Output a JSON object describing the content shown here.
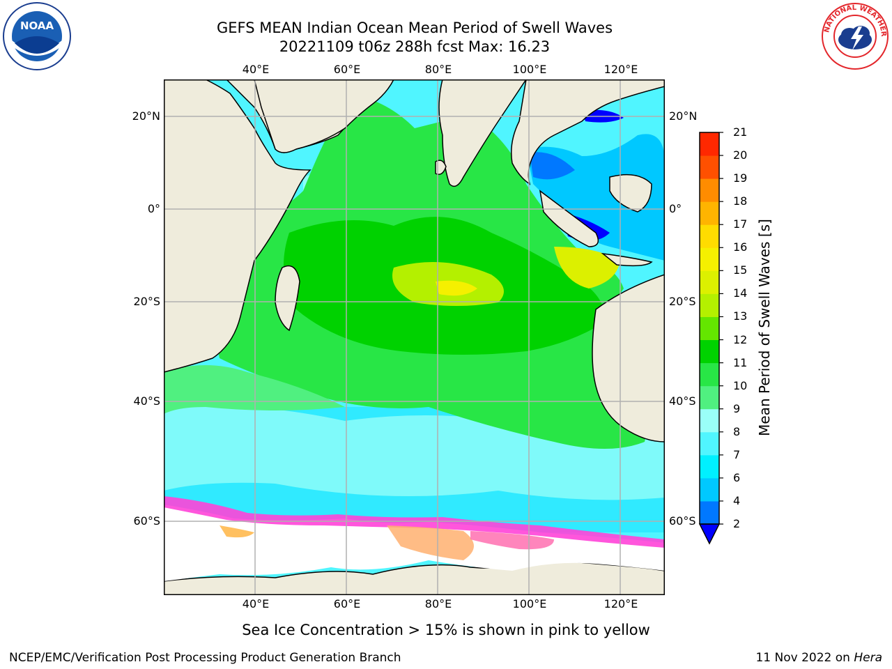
{
  "title": {
    "line1": "GEFS MEAN Indian Ocean Mean Period of Swell Waves",
    "line2": "20221109 t06z 288h fcst   Max: 16.23"
  },
  "logos": {
    "left": "noaa-logo",
    "right": "nws-logo",
    "left_text": "NOAA",
    "right_text": "NATIONAL WEATHER SERVICE"
  },
  "map": {
    "region": "Indian Ocean",
    "lon_range": [
      20,
      130
    ],
    "lat_range": [
      -72,
      28
    ],
    "lon_ticks": [
      {
        "value": 40,
        "label": "40°E"
      },
      {
        "value": 60,
        "label": "60°E"
      },
      {
        "value": 80,
        "label": "80°E"
      },
      {
        "value": 100,
        "label": "100°E"
      },
      {
        "value": 120,
        "label": "120°E"
      }
    ],
    "lat_ticks": [
      {
        "value": 20,
        "label": "20°N"
      },
      {
        "value": 0,
        "label": "0°"
      },
      {
        "value": -20,
        "label": "20°S"
      },
      {
        "value": -40,
        "label": "40°S"
      },
      {
        "value": -60,
        "label": "60°S"
      }
    ],
    "grid": true,
    "land_color": "#efecdc",
    "sea_ice_color": "#ffffff"
  },
  "colorbar": {
    "label": "Mean Period of Swell Waves [s]",
    "extend": "min",
    "under_color": "#0000ff",
    "levels": [
      2,
      4,
      6,
      7,
      8,
      9,
      10,
      11,
      12,
      13,
      14,
      15,
      16,
      17,
      18,
      19,
      20,
      21
    ],
    "level_labels": [
      "2",
      "4",
      "6",
      "7",
      "8",
      "9",
      "10",
      "11",
      "12",
      "13",
      "14",
      "15",
      "16",
      "17",
      "18",
      "19",
      "20",
      "21"
    ],
    "colors": [
      "#0078ff",
      "#00c8ff",
      "#00f0ff",
      "#50f5ff",
      "#9afff8",
      "#50f080",
      "#28e646",
      "#00d200",
      "#64e600",
      "#b4f000",
      "#dcf000",
      "#f5f000",
      "#ffdc00",
      "#ffb400",
      "#ff8c00",
      "#ff5000",
      "#ff2800"
    ]
  },
  "notes": {
    "ice": "Sea Ice Concentration > 15% is shown in pink to yellow",
    "credit": "NCEP/EMC/Verification Post Processing Product Generation Branch",
    "date": "11 Nov 2022 on",
    "host": "Hera"
  }
}
